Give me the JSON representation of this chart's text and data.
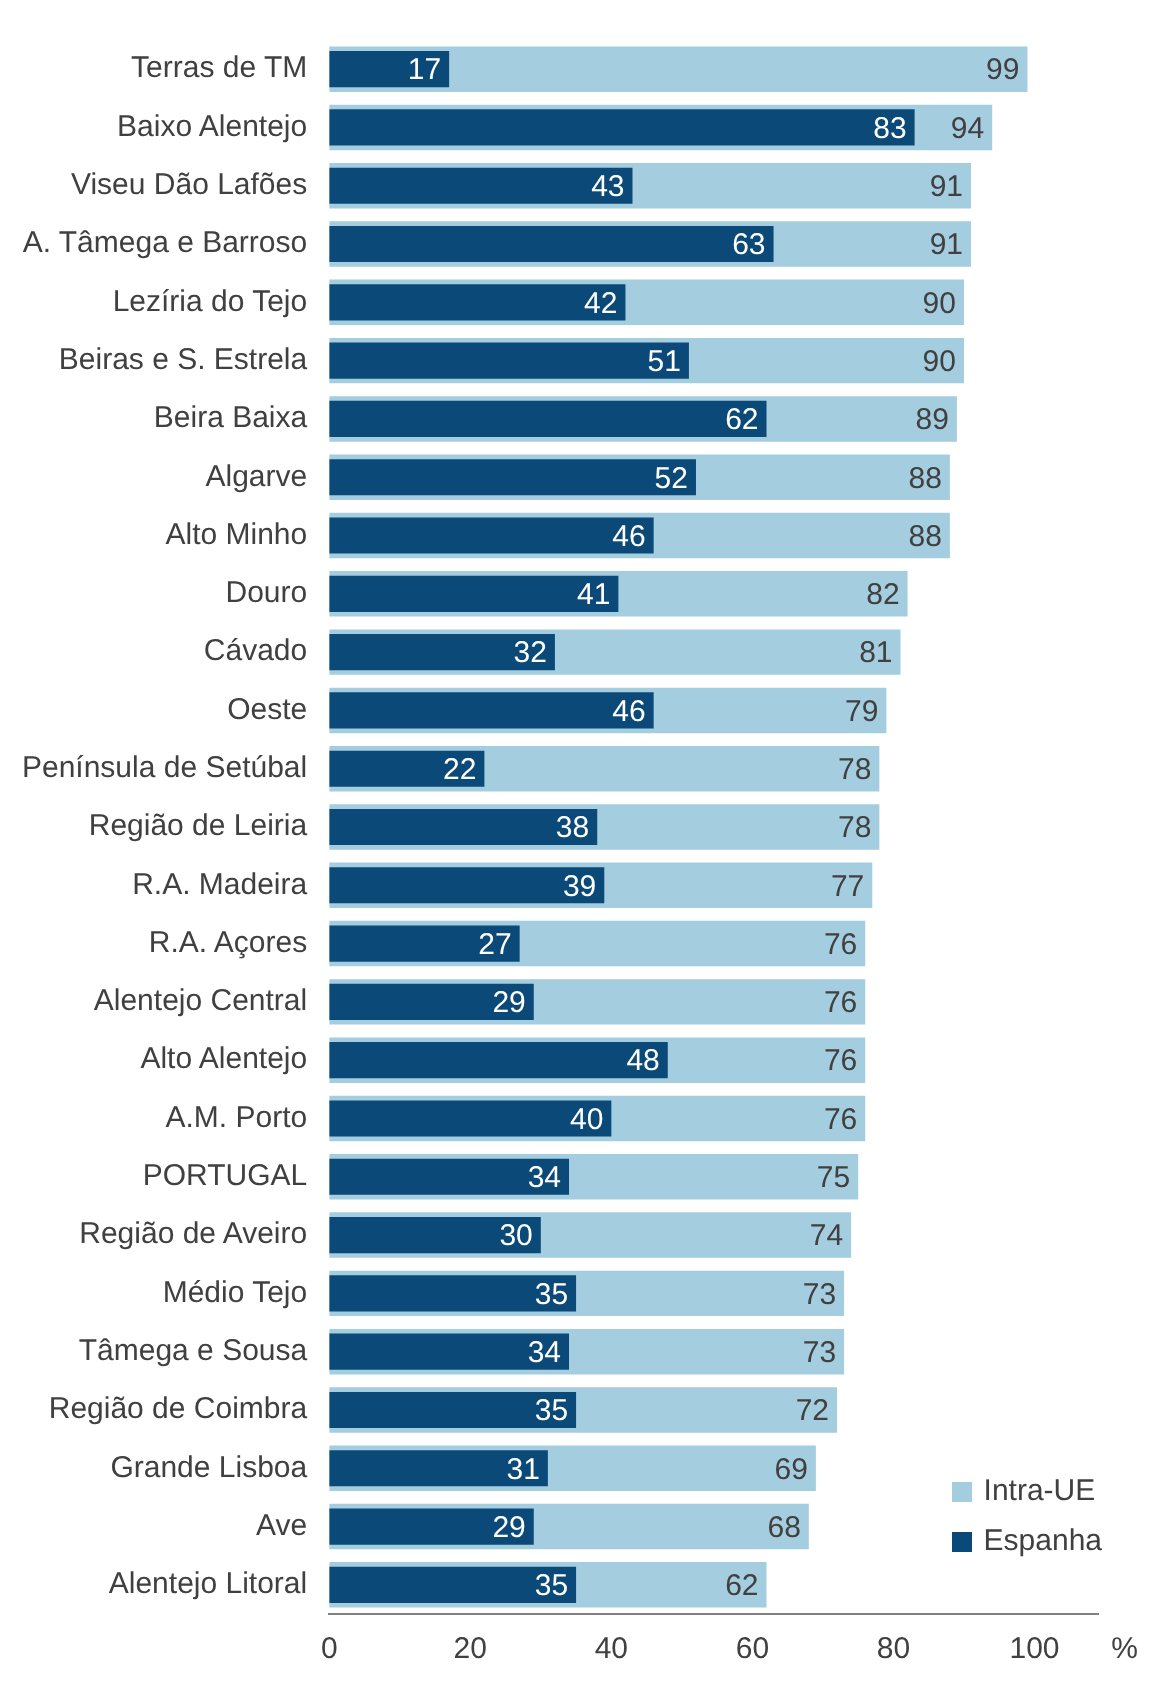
{
  "chart_data": {
    "type": "bar",
    "orientation": "horizontal",
    "xlabel": "%",
    "categories": [
      "Terras de TM",
      "Baixo Alentejo",
      "Viseu Dão Lafões",
      "A. Tâmega e Barroso",
      "Lezíria do Tejo",
      "Beiras e S. Estrela",
      "Beira Baixa",
      "Algarve",
      "Alto Minho",
      "Douro",
      "Cávado",
      "Oeste",
      "Península de Setúbal",
      "Região de Leiria",
      "R.A. Madeira",
      "R.A. Açores",
      "Alentejo Central",
      "Alto Alentejo",
      "A.M. Porto",
      "PORTUGAL",
      "Região de Aveiro",
      "Médio Tejo",
      "Tâmega e Sousa",
      "Região de Coimbra",
      "Grande Lisboa",
      "Ave",
      "Alentejo Litoral"
    ],
    "series": [
      {
        "name": "Intra-UE",
        "color": "#a5cde0",
        "values": [
          99,
          94,
          91,
          91,
          90,
          90,
          89,
          88,
          88,
          82,
          81,
          79,
          78,
          78,
          77,
          76,
          76,
          76,
          76,
          75,
          74,
          73,
          73,
          72,
          69,
          68,
          62
        ]
      },
      {
        "name": "Espanha",
        "color": "#0b4a78",
        "values": [
          17,
          83,
          43,
          63,
          42,
          51,
          62,
          52,
          46,
          41,
          32,
          46,
          22,
          38,
          39,
          27,
          29,
          48,
          40,
          34,
          30,
          35,
          34,
          35,
          31,
          29,
          35
        ]
      }
    ],
    "xlim": [
      0,
      109
    ],
    "xticks": [
      0,
      20,
      40,
      60,
      80,
      100
    ],
    "grid": false,
    "legend": "bottom right",
    "data_labels": true
  }
}
